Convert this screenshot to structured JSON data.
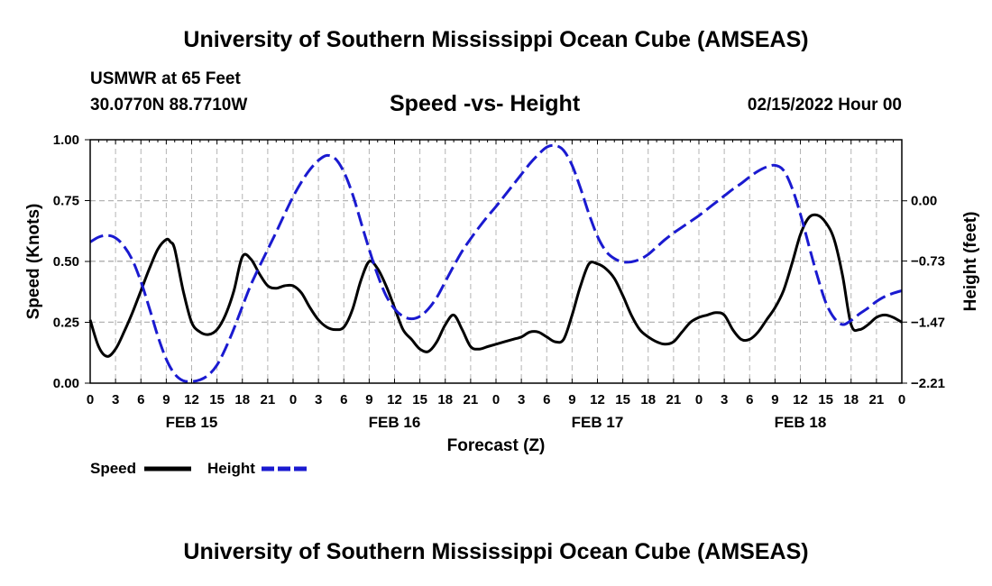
{
  "header": {
    "title": "University of Southern Mississippi Ocean Cube (AMSEAS)",
    "station": "USMWR at 65 Feet",
    "coordinates": "30.0770N  88.7710W",
    "subtitle": "Speed -vs- Height",
    "run_time": "02/15/2022 Hour 00"
  },
  "footer": {
    "title": "University of Southern Mississippi Ocean Cube (AMSEAS)"
  },
  "chart_data": {
    "type": "line",
    "title": "Speed -vs- Height",
    "xlabel": "Forecast (Z)",
    "ylabel_left": "Speed (Knots)",
    "ylabel_right": "Height (feet)",
    "xlim": [
      0,
      96
    ],
    "ylim_left": [
      0,
      1
    ],
    "ylim_right": [
      -2.21,
      0.74
    ],
    "x_tick_values": [
      0,
      3,
      6,
      9,
      12,
      15,
      18,
      21,
      24,
      27,
      30,
      33,
      36,
      39,
      42,
      45,
      48,
      51,
      54,
      57,
      60,
      63,
      66,
      69,
      72,
      75,
      78,
      81,
      84,
      87,
      90,
      93,
      96
    ],
    "x_tick_labels": [
      "0",
      "3",
      "6",
      "9",
      "12",
      "15",
      "18",
      "21",
      "0",
      "3",
      "6",
      "9",
      "12",
      "15",
      "18",
      "21",
      "0",
      "3",
      "6",
      "9",
      "12",
      "15",
      "18",
      "21",
      "0",
      "3",
      "6",
      "9",
      "12",
      "15",
      "18",
      "21",
      "0"
    ],
    "day_labels": [
      {
        "x": 12,
        "label": "FEB 15"
      },
      {
        "x": 36,
        "label": "FEB 16"
      },
      {
        "x": 60,
        "label": "FEB 17"
      },
      {
        "x": 84,
        "label": "FEB 18"
      }
    ],
    "y_left_ticks": [
      0,
      0.25,
      0.5,
      0.75,
      1
    ],
    "y_left_tick_labels": [
      "0.00",
      "0.25",
      "0.50",
      "0.75",
      "1.00"
    ],
    "y_right_ticks": [
      -2.21,
      -1.47,
      -0.73,
      0
    ],
    "y_right_tick_labels": [
      "−2.21",
      "−1.47",
      "−0.73",
      "0.00"
    ],
    "grid": true,
    "legend_position": "bottom-left",
    "series": [
      {
        "name": "Speed",
        "axis": "left",
        "color": "#000000",
        "dash": "solid",
        "x": [
          0,
          1,
          2,
          3,
          4,
          5,
          6,
          7,
          8,
          9,
          9.5,
          10,
          11,
          12,
          13,
          14,
          15,
          16,
          17,
          18,
          19,
          20,
          21,
          22,
          23,
          24,
          25,
          26,
          27,
          28,
          29,
          30,
          31,
          32,
          33,
          34,
          35,
          36,
          37,
          38,
          39,
          40,
          41,
          42,
          43,
          44,
          45,
          46,
          47,
          48,
          49,
          50,
          51,
          52,
          53,
          54,
          55,
          56,
          57,
          58,
          59,
          60,
          61,
          62,
          63,
          64,
          65,
          66,
          67,
          68,
          69,
          70,
          71,
          72,
          73,
          74,
          75,
          76,
          77,
          78,
          79,
          80,
          81,
          82,
          83,
          84,
          85,
          86,
          87,
          88,
          89,
          90,
          91,
          92,
          93,
          94,
          95,
          96
        ],
        "y": [
          0.26,
          0.15,
          0.11,
          0.14,
          0.21,
          0.29,
          0.38,
          0.47,
          0.55,
          0.59,
          0.58,
          0.55,
          0.38,
          0.25,
          0.21,
          0.2,
          0.22,
          0.28,
          0.38,
          0.52,
          0.51,
          0.45,
          0.4,
          0.39,
          0.4,
          0.4,
          0.37,
          0.31,
          0.26,
          0.23,
          0.22,
          0.23,
          0.3,
          0.42,
          0.5,
          0.47,
          0.4,
          0.31,
          0.22,
          0.18,
          0.14,
          0.13,
          0.17,
          0.24,
          0.28,
          0.22,
          0.15,
          0.14,
          0.15,
          0.16,
          0.17,
          0.18,
          0.19,
          0.21,
          0.21,
          0.19,
          0.17,
          0.18,
          0.28,
          0.4,
          0.49,
          0.49,
          0.47,
          0.43,
          0.36,
          0.28,
          0.22,
          0.19,
          0.17,
          0.16,
          0.17,
          0.21,
          0.25,
          0.27,
          0.28,
          0.29,
          0.28,
          0.22,
          0.18,
          0.18,
          0.21,
          0.26,
          0.31,
          0.38,
          0.49,
          0.61,
          0.68,
          0.69,
          0.66,
          0.59,
          0.44,
          0.24,
          0.22,
          0.24,
          0.27,
          0.28,
          0.27,
          0.25
        ]
      },
      {
        "name": "Height",
        "axis": "right",
        "color": "#1a1ad0",
        "dash": "dashed",
        "x": [
          0,
          1,
          2,
          3,
          4,
          5,
          6,
          7,
          8,
          9,
          10,
          11,
          12,
          13,
          14,
          15,
          16,
          17,
          18,
          19,
          20,
          21,
          22,
          23,
          24,
          25,
          26,
          27,
          28,
          29,
          30,
          31,
          32,
          33,
          34,
          35,
          36,
          37,
          38,
          39,
          40,
          41,
          42,
          43,
          44,
          45,
          46,
          47,
          48,
          49,
          50,
          51,
          52,
          53,
          54,
          55,
          56,
          57,
          58,
          59,
          60,
          61,
          62,
          63,
          64,
          65,
          66,
          67,
          68,
          69,
          70,
          71,
          72,
          73,
          74,
          75,
          76,
          77,
          78,
          79,
          80,
          81,
          82,
          83,
          84,
          85,
          86,
          87,
          88,
          89,
          90,
          91,
          92,
          93,
          94,
          95,
          96
        ],
        "y": [
          -0.5,
          -0.44,
          -0.42,
          -0.45,
          -0.55,
          -0.72,
          -0.98,
          -1.3,
          -1.64,
          -1.92,
          -2.1,
          -2.18,
          -2.19,
          -2.17,
          -2.11,
          -1.99,
          -1.79,
          -1.55,
          -1.28,
          -1.02,
          -0.8,
          -0.59,
          -0.38,
          -0.16,
          0.05,
          0.23,
          0.38,
          0.49,
          0.55,
          0.51,
          0.35,
          0.09,
          -0.25,
          -0.59,
          -0.9,
          -1.15,
          -1.31,
          -1.4,
          -1.43,
          -1.4,
          -1.31,
          -1.17,
          -0.98,
          -0.79,
          -0.61,
          -0.46,
          -0.32,
          -0.19,
          -0.07,
          0.06,
          0.19,
          0.32,
          0.45,
          0.56,
          0.65,
          0.67,
          0.61,
          0.43,
          0.15,
          -0.16,
          -0.43,
          -0.61,
          -0.7,
          -0.74,
          -0.74,
          -0.71,
          -0.65,
          -0.56,
          -0.47,
          -0.39,
          -0.32,
          -0.25,
          -0.18,
          -0.1,
          -0.02,
          0.06,
          0.14,
          0.21,
          0.29,
          0.36,
          0.41,
          0.43,
          0.37,
          0.16,
          -0.16,
          -0.54,
          -0.91,
          -1.23,
          -1.42,
          -1.5,
          -1.45,
          -1.37,
          -1.3,
          -1.22,
          -1.16,
          -1.12,
          -1.09
        ]
      }
    ]
  }
}
